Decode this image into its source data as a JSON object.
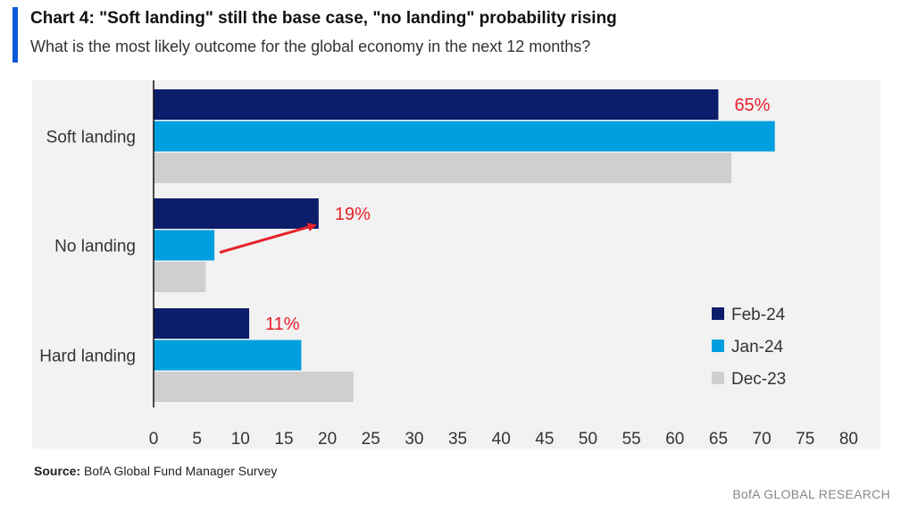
{
  "header": {
    "title": "Chart 4: \"Soft landing\" still the base case, \"no landing\" probability rising",
    "subtitle": "What is the most likely outcome for the global economy in the next 12 months?"
  },
  "footer": {
    "source_label": "Source:",
    "source_text": "BofA Global Fund Manager Survey",
    "brand": "BofA GLOBAL RESEARCH"
  },
  "colors": {
    "accent": "#0a5bd6",
    "feb24": "#0b1d6b",
    "jan24": "#009fdf",
    "dec23": "#cfcfcf",
    "annotation": "#e8202a"
  },
  "chart_data": {
    "type": "bar",
    "orientation": "horizontal",
    "categories": [
      "Soft landing",
      "No landing",
      "Hard landing"
    ],
    "series": [
      {
        "name": "Feb-24",
        "values": [
          65,
          19,
          11
        ]
      },
      {
        "name": "Jan-24",
        "values": [
          71.5,
          7,
          17
        ]
      },
      {
        "name": "Dec-23",
        "values": [
          66.5,
          6,
          23
        ]
      }
    ],
    "xlim": [
      0,
      80
    ],
    "xticks": [
      0,
      5,
      10,
      15,
      20,
      25,
      30,
      35,
      40,
      45,
      50,
      55,
      60,
      65,
      70,
      75,
      80
    ],
    "legend_position": "bottom-right",
    "annotations": [
      {
        "category": "Soft landing",
        "series": "Feb-24",
        "text": "65%"
      },
      {
        "category": "No landing",
        "series": "Feb-24",
        "text": "19%"
      },
      {
        "category": "Hard landing",
        "series": "Feb-24",
        "text": "11%"
      }
    ],
    "arrow": {
      "category": "No landing",
      "from_value": 7,
      "to_value": 19
    }
  }
}
